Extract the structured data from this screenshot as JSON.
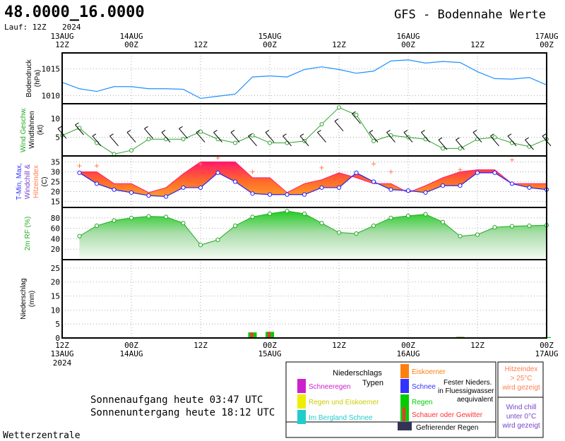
{
  "header": {
    "coords": "48.0000_16.0000",
    "run": "Lauf: 12Z",
    "title": "GFS - Bodennahe Werte"
  },
  "sun": {
    "sunrise": "Sonnenaufgang heute 03:47 UTC",
    "sunset": "Sonnenuntergang heute 18:12 UTC"
  },
  "credit": "Wetterzentrale",
  "axis": {
    "top_labels": [
      {
        "l1": "13AUG",
        "l2": "12Z",
        "year": "2024"
      },
      {
        "l1": "14AUG",
        "l2": "00Z"
      },
      {
        "l1": "",
        "l2": "12Z"
      },
      {
        "l1": "15AUG",
        "l2": "00Z"
      },
      {
        "l1": "",
        "l2": "12Z"
      },
      {
        "l1": "16AUG",
        "l2": "00Z"
      },
      {
        "l1": "",
        "l2": "12Z"
      },
      {
        "l1": "17AUG",
        "l2": "00Z"
      }
    ],
    "bottom_labels": [
      {
        "l1": "12Z",
        "l2": "13AUG",
        "year": "2024"
      },
      {
        "l1": "00Z",
        "l2": "14AUG"
      },
      {
        "l1": "12Z",
        "l2": ""
      },
      {
        "l1": "00Z",
        "l2": "15AUG"
      },
      {
        "l1": "12Z",
        "l2": ""
      },
      {
        "l1": "00Z",
        "l2": "16AUG"
      },
      {
        "l1": "12Z",
        "l2": ""
      },
      {
        "l1": "00Z",
        "l2": "17AUG"
      }
    ]
  },
  "chart_data": [
    {
      "type": "line",
      "ylabel": [
        "Bodendruck",
        "(hPa)"
      ],
      "ylim": [
        1008.5,
        1018
      ],
      "yticks": [
        1010,
        1015
      ],
      "x_hours": [
        0,
        3,
        6,
        9,
        12,
        15,
        18,
        21,
        24,
        27,
        30,
        33,
        36,
        39,
        42,
        45,
        48,
        51,
        54,
        57,
        60,
        63,
        66,
        69,
        72,
        75,
        78,
        81,
        84
      ],
      "values": [
        1012.5,
        1011.3,
        1010.8,
        1011.7,
        1011.7,
        1011.3,
        1011.3,
        1011.2,
        1009.5,
        1009.9,
        1010.3,
        1013.5,
        1013.7,
        1013.5,
        1014.9,
        1015.4,
        1014.9,
        1014.2,
        1014.6,
        1016.5,
        1016.7,
        1016.1,
        1016.4,
        1016.2,
        1014.5,
        1013.2,
        1013.1,
        1013.4,
        1012.0
      ],
      "color": "#1e90ff"
    },
    {
      "type": "line",
      "ylabel": [
        "Wind Geschw.",
        "Windfahnen",
        "(kt)"
      ],
      "ylim": [
        0,
        14
      ],
      "yticks": [
        5,
        10
      ],
      "x_hours": [
        0,
        3,
        6,
        9,
        12,
        15,
        18,
        21,
        24,
        27,
        30,
        33,
        36,
        39,
        42,
        45,
        48,
        51,
        54,
        57,
        60,
        63,
        66,
        69,
        72,
        75,
        78,
        81,
        84
      ],
      "values": [
        5.5,
        7.5,
        3.5,
        0.5,
        1.5,
        4.5,
        4.5,
        4.5,
        6.5,
        4.5,
        3.5,
        5.5,
        3.5,
        3.5,
        4,
        8.5,
        13,
        11,
        4,
        5.5,
        5,
        4.5,
        2,
        2,
        4.5,
        5,
        3.5,
        2.5,
        4.5
      ],
      "barbs": [
        [
          0,
          6
        ],
        [
          3,
          7
        ],
        [
          6,
          4
        ],
        [
          9,
          4
        ],
        [
          12,
          5
        ],
        [
          15,
          6
        ],
        [
          18,
          5
        ],
        [
          21,
          6
        ],
        [
          24,
          5
        ],
        [
          27,
          5
        ],
        [
          30,
          5
        ],
        [
          33,
          4
        ],
        [
          36,
          5
        ],
        [
          39,
          4
        ],
        [
          42,
          4
        ],
        [
          45,
          5
        ],
        [
          48,
          8
        ],
        [
          51,
          10
        ],
        [
          54,
          5
        ],
        [
          57,
          5
        ],
        [
          60,
          5
        ],
        [
          63,
          5
        ],
        [
          66,
          3
        ],
        [
          69,
          3
        ],
        [
          72,
          5
        ],
        [
          75,
          4
        ],
        [
          78,
          4
        ],
        [
          81,
          3
        ],
        [
          84,
          4
        ]
      ],
      "color": "#2ca02c"
    },
    {
      "type": "area",
      "ylabel": [
        "T-Min, Max,",
        "Windchill &",
        "Hitzeindex",
        "(C)"
      ],
      "ylim": [
        12,
        38
      ],
      "yticks": [
        15,
        20,
        25,
        30,
        35
      ],
      "x_hours": [
        3,
        6,
        9,
        12,
        15,
        18,
        21,
        24,
        27,
        30,
        33,
        36,
        39,
        42,
        45,
        48,
        51,
        54,
        57,
        60,
        63,
        66,
        69,
        72,
        75,
        78,
        81,
        84
      ],
      "t_max": [
        30,
        30,
        24,
        24,
        19.5,
        22,
        29,
        35,
        35,
        35,
        27,
        27,
        19.5,
        24,
        26,
        29.5,
        27,
        24,
        24,
        19.5,
        23,
        27,
        30,
        31,
        31,
        24,
        24,
        24
      ],
      "t_min": [
        29.5,
        24,
        21,
        19.5,
        18,
        17.5,
        22,
        22,
        29.5,
        25,
        19,
        18.5,
        18.5,
        18.5,
        22,
        22,
        29.5,
        25,
        21,
        20.5,
        19.5,
        23,
        23,
        29.5,
        29.5,
        24,
        22,
        21
      ],
      "heat_index": [
        [
          3,
          33
        ],
        [
          6,
          33
        ],
        [
          24,
          34
        ],
        [
          27,
          37
        ],
        [
          33,
          30
        ],
        [
          45,
          32
        ],
        [
          54,
          34
        ],
        [
          57,
          30
        ],
        [
          69,
          31
        ],
        [
          78,
          36
        ]
      ],
      "colors": {
        "hot": "#ff1a6a",
        "mid": "#ff6a2a",
        "cool": "#ff9a2a",
        "min_line": "#2020ff"
      }
    },
    {
      "type": "area",
      "ylabel": [
        "2m RF (%)"
      ],
      "ylim": [
        0,
        100
      ],
      "yticks": [
        20,
        40,
        60,
        80
      ],
      "x_hours": [
        3,
        6,
        9,
        12,
        15,
        18,
        21,
        24,
        27,
        30,
        33,
        36,
        39,
        42,
        45,
        48,
        51,
        54,
        57,
        60,
        63,
        66,
        69,
        72,
        75,
        78,
        81,
        84
      ],
      "values": [
        45,
        65,
        75,
        80,
        83,
        82,
        70,
        28,
        38,
        65,
        82,
        88,
        93,
        88,
        70,
        52,
        50,
        65,
        80,
        84,
        87,
        72,
        45,
        48,
        62,
        64,
        65,
        66
      ],
      "color": "#22cc22"
    },
    {
      "type": "bar",
      "ylabel": [
        "Niederschlag",
        "(mm)"
      ],
      "ylim": [
        0,
        28
      ],
      "yticks": [
        0,
        5,
        10,
        15,
        20,
        25
      ],
      "bars": [
        [
          33,
          2.0
        ],
        [
          36,
          2.2
        ],
        [
          69,
          0.4
        ],
        [
          84,
          0.3
        ]
      ],
      "colors": {
        "rain": "#00cc00",
        "shower": "#ff3333"
      }
    }
  ],
  "legend": {
    "title1": "Niederschlags",
    "title2": "Typen",
    "items": [
      {
        "label": "Schneeregen",
        "color": "#cc22cc"
      },
      {
        "label": "Regen und Eiskoerner",
        "color": "#eeee00"
      },
      {
        "label": "Im Bergland Schnee",
        "color": "#22cccc"
      }
    ],
    "items2": [
      {
        "label": "Eiskoerner",
        "color": "#ff7f0e"
      },
      {
        "label": "Schnee",
        "color": "#3333ff"
      },
      {
        "label": "Regen",
        "color": "#00cc00"
      },
      {
        "label": "Schauer oder Gewitter",
        "color": "#ff3333"
      },
      {
        "label": "Gefrierender Regen",
        "color": "#333355"
      }
    ],
    "fester": [
      "Fester Nieders.",
      "in Fluessigwasser",
      "aequivalent"
    ],
    "hitze": [
      "Hitzeindex",
      "> 25°C",
      "wird gezeigt"
    ],
    "chill": [
      "Wind chill",
      "unter 0°C",
      "wird gezeigt"
    ]
  }
}
